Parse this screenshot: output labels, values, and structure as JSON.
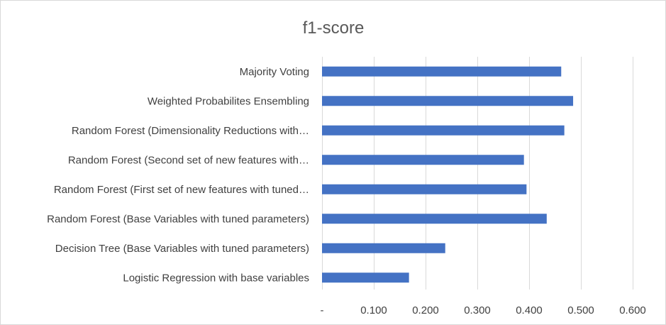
{
  "chart_data": {
    "type": "bar",
    "orientation": "horizontal",
    "title": "f1-score",
    "xlabel": "",
    "ylabel": "",
    "categories": [
      "Majority Voting",
      "Weighted Probabilites Ensembling",
      "Random Forest (Dimensionality Reductions with…",
      "Random Forest (Second set of new features with…",
      "Random Forest (First set of new features with tuned…",
      "Random Forest (Base Variables with tuned parameters)",
      "Decision Tree (Base Variables with tuned parameters)",
      "Logistic Regression with base variables"
    ],
    "values": [
      0.462,
      0.485,
      0.468,
      0.39,
      0.395,
      0.434,
      0.238,
      0.168
    ],
    "xlim": [
      0,
      0.6
    ],
    "xticks": [
      0,
      0.1,
      0.2,
      0.3,
      0.4,
      0.5,
      0.6
    ],
    "xtick_labels": [
      "-",
      "0.100",
      "0.200",
      "0.300",
      "0.400",
      "0.500",
      "0.600"
    ],
    "grid": "vertical",
    "legend": "none",
    "bar_color": "#4472c4",
    "grid_color": "#d9d9d9"
  }
}
